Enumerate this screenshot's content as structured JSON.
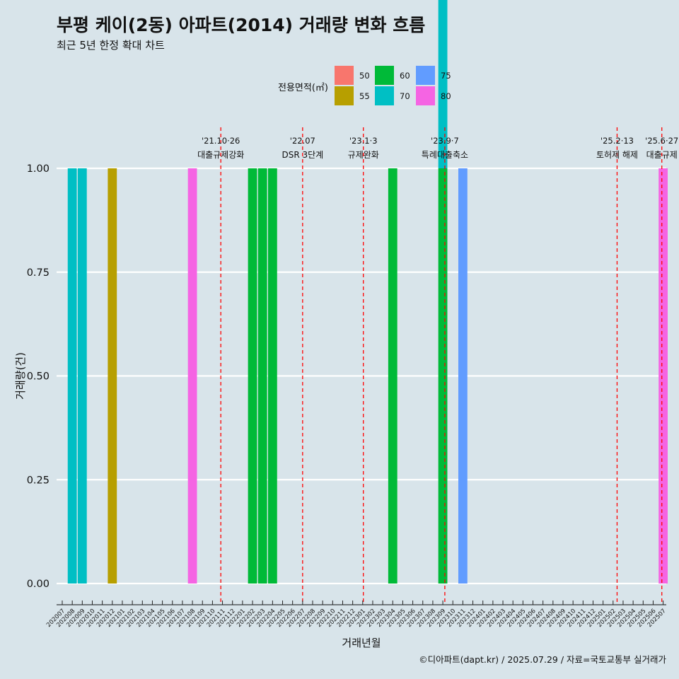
{
  "header": {
    "title": "부평 케이(2동) 아파트(2014) 거래량 변화 흐름",
    "subtitle": "최근 5년 한정 확대 차트"
  },
  "caption": "©디아파트(dapt.kr) / 2025.07.29 / 자료=국토교통부 실거래가",
  "chart_data": {
    "type": "bar",
    "xlabel": "거래년월",
    "ylabel": "거래량(건)",
    "ylim": [
      0,
      1
    ],
    "yticks": [
      "0.00",
      "0.25",
      "0.50",
      "0.75",
      "1.00"
    ],
    "grid": true,
    "categories": [
      "202007",
      "202008",
      "202009",
      "202010",
      "202011",
      "202012",
      "202101",
      "202102",
      "202103",
      "202104",
      "202105",
      "202106",
      "202107",
      "202108",
      "202109",
      "202110",
      "202111",
      "202112",
      "202201",
      "202202",
      "202203",
      "202204",
      "202205",
      "202206",
      "202207",
      "202208",
      "202209",
      "202210",
      "202211",
      "202212",
      "202301",
      "202302",
      "202303",
      "202304",
      "202305",
      "202306",
      "202307",
      "202308",
      "202309",
      "202310",
      "202311",
      "202312",
      "202401",
      "202402",
      "202403",
      "202404",
      "202405",
      "202406",
      "202407",
      "202408",
      "202409",
      "202410",
      "202411",
      "202412",
      "202501",
      "202502",
      "202503",
      "202504",
      "202505",
      "202506",
      "202507"
    ],
    "legend": {
      "title": "전용면적(㎡)",
      "position": "top",
      "items": [
        {
          "label": "50",
          "color": "#F8766D"
        },
        {
          "label": "55",
          "color": "#B79F00"
        },
        {
          "label": "60",
          "color": "#00BA38"
        },
        {
          "label": "70",
          "color": "#00BFC4"
        },
        {
          "label": "75",
          "color": "#619CFF"
        },
        {
          "label": "80",
          "color": "#F564E3"
        }
      ]
    },
    "bars": [
      {
        "month": "202008",
        "area": "70",
        "value": 1
      },
      {
        "month": "202009",
        "area": "70",
        "value": 1
      },
      {
        "month": "202012",
        "area": "55",
        "value": 1
      },
      {
        "month": "202108",
        "area": "80",
        "value": 1
      },
      {
        "month": "202202",
        "area": "60",
        "value": 1
      },
      {
        "month": "202203",
        "area": "60",
        "value": 1
      },
      {
        "month": "202204",
        "area": "60",
        "value": 1
      },
      {
        "month": "202304",
        "area": "60",
        "value": 1
      },
      {
        "month": "202309",
        "area": "60",
        "value": 1
      },
      {
        "month": "202309",
        "area": "70",
        "value": 1
      },
      {
        "month": "202311",
        "area": "75",
        "value": 1
      },
      {
        "month": "202507",
        "area": "80",
        "value": 1
      }
    ],
    "events": [
      {
        "date": "2021-10-26",
        "label1": "'21.10·26",
        "label2": "대출규제강화"
      },
      {
        "date": "2022-07-01",
        "label1": "'22.07",
        "label2": "DSR 3단계"
      },
      {
        "date": "2023-01-03",
        "label1": "'23.1·3",
        "label2": "규제완화"
      },
      {
        "date": "2023-09-07",
        "label1": "'23.9·7",
        "label2": "특례대출축소"
      },
      {
        "date": "2025-02-13",
        "label1": "'25.2·13",
        "label2": "토허제 해제"
      },
      {
        "date": "2025-06-27",
        "label1": "'25.6·27",
        "label2": "대출규제"
      }
    ],
    "colors": {
      "background": "#d8e4ea",
      "grid": "#ffffff",
      "event_line": "#ff0000"
    }
  }
}
